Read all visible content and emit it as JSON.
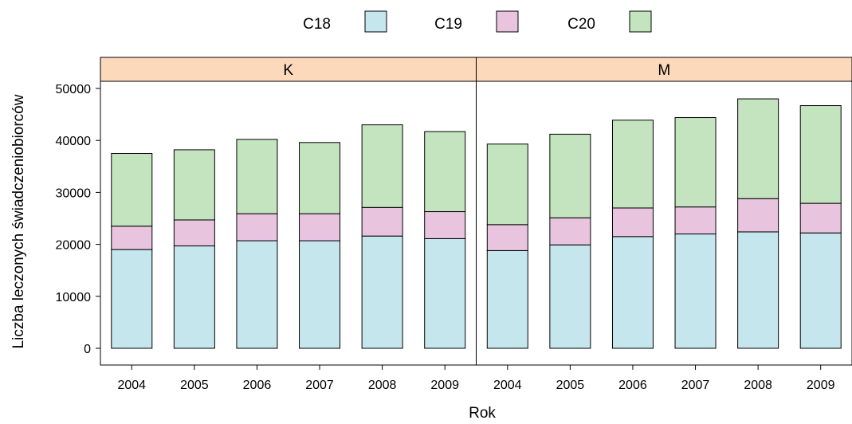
{
  "chart_data": {
    "type": "bar",
    "stacked": true,
    "xlabel": "Rok",
    "ylabel": "Liczba leczonych świadczeniobiorców",
    "ylim": [
      0,
      55000
    ],
    "yticks": [
      "0",
      "10000",
      "20000",
      "30000",
      "40000",
      "50000"
    ],
    "categories": [
      "2004",
      "2005",
      "2006",
      "2007",
      "2008",
      "2009"
    ],
    "legend_position": "top",
    "colors": {
      "C18": "#c6e6ee",
      "C19": "#e8c4df",
      "C20": "#c4e3bf",
      "strip": "#fcd9bb"
    },
    "panels": [
      {
        "label": "K",
        "series": [
          {
            "name": "C18",
            "values": [
              19000,
              19700,
              20700,
              20700,
              21600,
              21100
            ]
          },
          {
            "name": "C19",
            "values": [
              4500,
              5000,
              5200,
              5200,
              5500,
              5200
            ]
          },
          {
            "name": "C20",
            "values": [
              14000,
              13500,
              14300,
              13700,
              15900,
              15400
            ]
          }
        ]
      },
      {
        "label": "M",
        "series": [
          {
            "name": "C18",
            "values": [
              18800,
              19900,
              21500,
              22000,
              22400,
              22200
            ]
          },
          {
            "name": "C19",
            "values": [
              5000,
              5200,
              5500,
              5200,
              6400,
              5700
            ]
          },
          {
            "name": "C20",
            "values": [
              15500,
              16100,
              16900,
              17200,
              19200,
              18800
            ]
          }
        ]
      }
    ]
  }
}
